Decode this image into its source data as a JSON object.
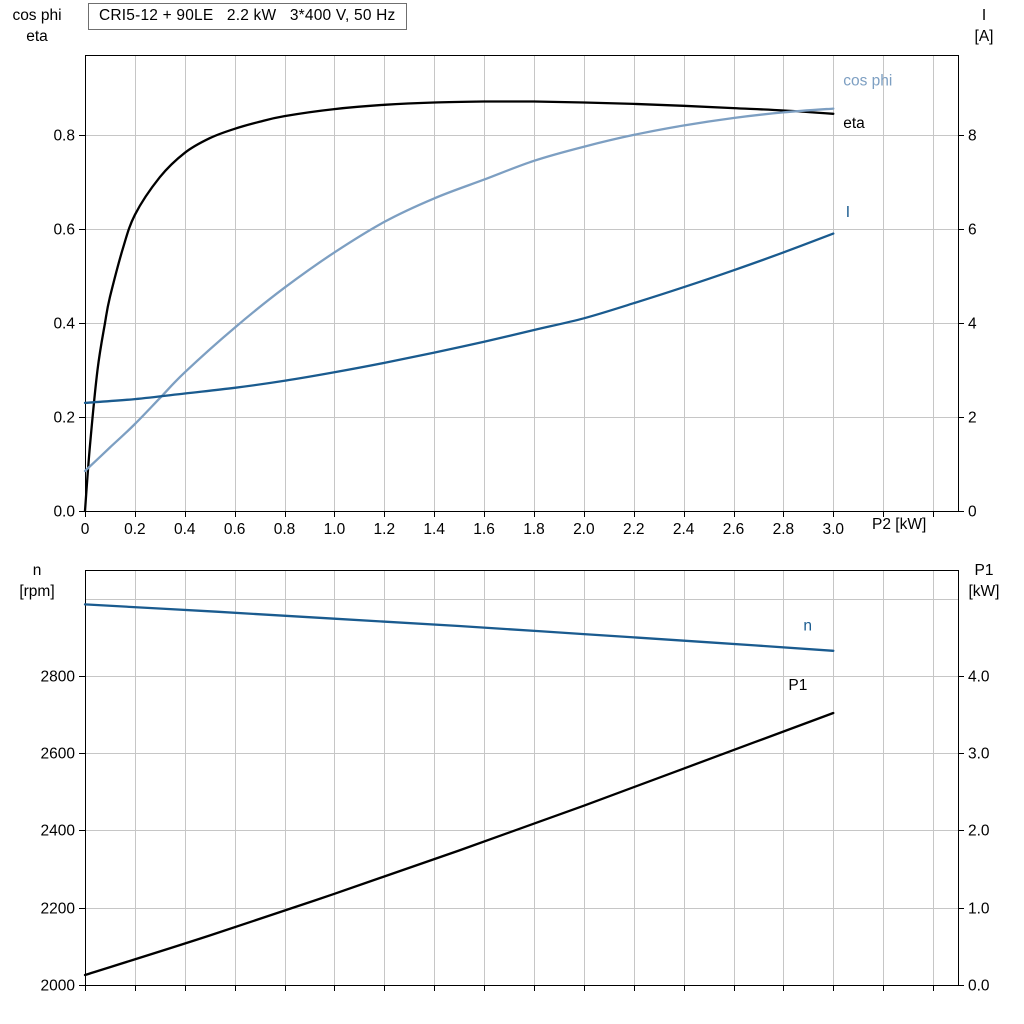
{
  "title_box": "CRI5-12 + 90LE   2.2 kW   3*400 V, 50 Hz",
  "style": {
    "background": "#ffffff",
    "grid": "#c6c6c6",
    "axis": "#000000",
    "eta_color": "#000000",
    "cos_phi_color": "#7d9fc2",
    "current_color": "#1a5b8f",
    "speed_color": "#1a5b8f",
    "power_color": "#000000"
  },
  "chart_data": [
    {
      "id": "upper-chart",
      "type": "line",
      "title": "CRI5-12 + 90LE 2.2 kW 3*400 V, 50 Hz",
      "grid": "on",
      "x_axis": {
        "label": "P2 [kW]",
        "min": 0,
        "max": 3.5,
        "grid_step": 0.2,
        "tick_values": [
          0,
          0.2,
          0.4,
          0.6,
          0.8,
          1.0,
          1.2,
          1.4,
          1.6,
          1.8,
          2.0,
          2.2,
          2.4,
          2.6,
          2.8,
          3.0
        ],
        "tick_labels": [
          "0",
          "0.2",
          "0.4",
          "0.6",
          "0.8",
          "1.0",
          "1.2",
          "1.4",
          "1.6",
          "1.8",
          "2.0",
          "2.2",
          "2.4",
          "2.6",
          "2.8",
          "3.0"
        ]
      },
      "y_left": {
        "label_lines": [
          "cos phi",
          "eta"
        ],
        "min": 0,
        "max": 0.97,
        "grid": [
          0.2,
          0.4,
          0.6,
          0.8
        ],
        "tick_values": [
          0.0,
          0.2,
          0.4,
          0.6,
          0.8
        ],
        "tick_labels": [
          "0.0",
          "0.2",
          "0.4",
          "0.6",
          "0.8"
        ]
      },
      "y_right": {
        "label_lines": [
          "I",
          "[A]"
        ],
        "min": 0,
        "max": 9.7,
        "tick_values": [
          0,
          2,
          4,
          6,
          8
        ],
        "tick_labels": [
          "0",
          "2",
          "4",
          "6",
          "8"
        ]
      },
      "series": [
        {
          "id": "eta",
          "label": "eta",
          "axis": "left",
          "color": "#000000",
          "label_pos": [
            3.04,
            0.815
          ],
          "points": [
            [
              0,
              0
            ],
            [
              0.02,
              0.14
            ],
            [
              0.05,
              0.3
            ],
            [
              0.08,
              0.4
            ],
            [
              0.1,
              0.455
            ],
            [
              0.15,
              0.555
            ],
            [
              0.2,
              0.63
            ],
            [
              0.3,
              0.71
            ],
            [
              0.4,
              0.762
            ],
            [
              0.5,
              0.793
            ],
            [
              0.6,
              0.813
            ],
            [
              0.7,
              0.828
            ],
            [
              0.8,
              0.84
            ],
            [
              1.0,
              0.855
            ],
            [
              1.2,
              0.864
            ],
            [
              1.4,
              0.869
            ],
            [
              1.6,
              0.871
            ],
            [
              1.8,
              0.871
            ],
            [
              2.0,
              0.869
            ],
            [
              2.2,
              0.866
            ],
            [
              2.4,
              0.862
            ],
            [
              2.6,
              0.857
            ],
            [
              2.8,
              0.852
            ],
            [
              3.0,
              0.845
            ]
          ]
        },
        {
          "id": "cos-phi",
          "label": "cos phi",
          "axis": "left",
          "color": "#7d9fc2",
          "label_pos": [
            3.04,
            0.905
          ],
          "points": [
            [
              0,
              0.085
            ],
            [
              0.1,
              0.135
            ],
            [
              0.2,
              0.185
            ],
            [
              0.3,
              0.24
            ],
            [
              0.4,
              0.295
            ],
            [
              0.6,
              0.39
            ],
            [
              0.8,
              0.475
            ],
            [
              1.0,
              0.55
            ],
            [
              1.2,
              0.615
            ],
            [
              1.4,
              0.665
            ],
            [
              1.6,
              0.705
            ],
            [
              1.8,
              0.745
            ],
            [
              2.0,
              0.775
            ],
            [
              2.2,
              0.8
            ],
            [
              2.4,
              0.82
            ],
            [
              2.6,
              0.836
            ],
            [
              2.8,
              0.848
            ],
            [
              3.0,
              0.856
            ]
          ]
        },
        {
          "id": "current",
          "label": "I",
          "axis": "right",
          "color": "#1a5b8f",
          "label_pos": [
            3.05,
            6.25
          ],
          "points": [
            [
              0,
              2.3
            ],
            [
              0.2,
              2.38
            ],
            [
              0.4,
              2.5
            ],
            [
              0.6,
              2.62
            ],
            [
              0.8,
              2.77
            ],
            [
              1.0,
              2.95
            ],
            [
              1.2,
              3.15
            ],
            [
              1.4,
              3.37
            ],
            [
              1.6,
              3.6
            ],
            [
              1.8,
              3.85
            ],
            [
              2.0,
              4.1
            ],
            [
              2.2,
              4.42
            ],
            [
              2.4,
              4.76
            ],
            [
              2.6,
              5.12
            ],
            [
              2.8,
              5.5
            ],
            [
              3.0,
              5.9
            ]
          ]
        }
      ]
    },
    {
      "id": "lower-chart",
      "type": "line",
      "title": "",
      "grid": "on",
      "x_axis": {
        "label": "",
        "min": 0,
        "max": 3.5,
        "grid_step": 0.2,
        "tick_values": [],
        "tick_labels": []
      },
      "y_left": {
        "label_lines": [
          "n",
          "[rpm]"
        ],
        "min": 2000,
        "max": 3074,
        "grid": [
          2200,
          2400,
          2600,
          2800,
          3000
        ],
        "tick_values": [
          2000,
          2200,
          2400,
          2600,
          2800
        ],
        "tick_labels": [
          "2000",
          "2200",
          "2400",
          "2600",
          "2800"
        ]
      },
      "y_right": {
        "label_lines": [
          "P1",
          "[kW]"
        ],
        "min": 0,
        "max": 5.37,
        "tick_values": [
          0,
          1,
          2,
          3,
          4
        ],
        "tick_labels": [
          "0.0",
          "1.0",
          "2.0",
          "3.0",
          "4.0"
        ]
      },
      "series": [
        {
          "id": "speed",
          "label": "n",
          "axis": "left",
          "color": "#1a5b8f",
          "label_pos": [
            2.88,
            2918
          ],
          "points": [
            [
              0,
              2985
            ],
            [
              0.5,
              2967
            ],
            [
              1.0,
              2948
            ],
            [
              1.5,
              2929
            ],
            [
              2.0,
              2908
            ],
            [
              2.5,
              2887
            ],
            [
              3.0,
              2865
            ]
          ]
        },
        {
          "id": "power",
          "label": "P1",
          "axis": "right",
          "color": "#000000",
          "label_pos": [
            2.82,
            3.82
          ],
          "points": [
            [
              0,
              0.13
            ],
            [
              0.5,
              0.64
            ],
            [
              1.0,
              1.18
            ],
            [
              1.5,
              1.74
            ],
            [
              2.0,
              2.32
            ],
            [
              2.5,
              2.92
            ],
            [
              3.0,
              3.52
            ]
          ]
        }
      ]
    }
  ]
}
